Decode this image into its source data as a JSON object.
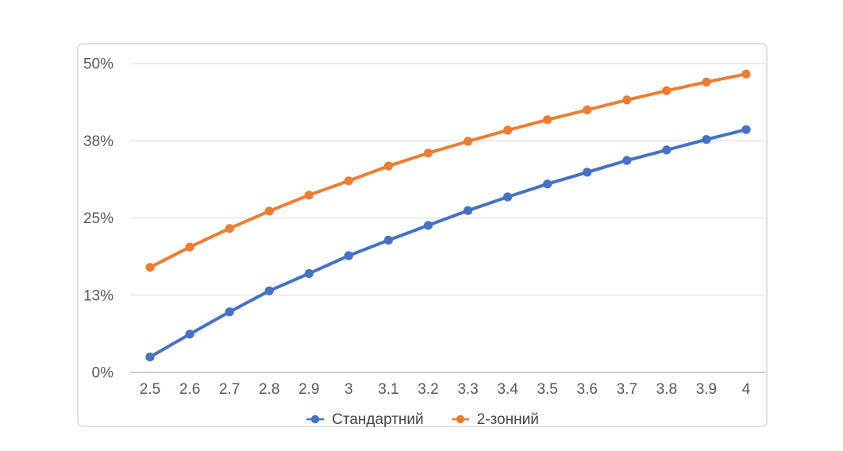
{
  "chart_data": {
    "type": "line",
    "title": "",
    "xlabel": "",
    "ylabel": "",
    "grid": "horizontal",
    "legend_position": "bottom",
    "x_categories": [
      "2.5",
      "2.6",
      "2.7",
      "2.8",
      "2.9",
      "3",
      "3.1",
      "3.2",
      "3.3",
      "3.4",
      "3.5",
      "3.6",
      "3.7",
      "3.8",
      "3.9",
      "4"
    ],
    "y_axis": {
      "min": 0,
      "max": 50,
      "unit": "%",
      "ticks": [
        {
          "value": 0,
          "label": "0%"
        },
        {
          "value": 12.5,
          "label": "13%"
        },
        {
          "value": 25,
          "label": "25%"
        },
        {
          "value": 37.5,
          "label": "38%"
        },
        {
          "value": 50,
          "label": "50%"
        }
      ]
    },
    "series": [
      {
        "name": "Стандартний",
        "color": "#4472C4",
        "marker": "circle",
        "values": [
          2.5,
          6.2,
          9.8,
          13.2,
          16.0,
          18.9,
          21.4,
          23.8,
          26.2,
          28.4,
          30.5,
          32.4,
          34.3,
          36.0,
          37.7,
          39.3
        ]
      },
      {
        "name": "2-зонний",
        "color": "#ED7D31",
        "marker": "circle",
        "values": [
          17.0,
          20.3,
          23.3,
          26.1,
          28.7,
          31.0,
          33.4,
          35.5,
          37.4,
          39.2,
          40.9,
          42.5,
          44.1,
          45.6,
          47.0,
          48.3
        ]
      }
    ]
  },
  "style": {
    "gridline_color": "#d9d9d9",
    "axis_line_color": "#bfbfbf",
    "tick_label_color": "#595959",
    "legend_text_color": "#444444",
    "frame_border_color": "#e2e2e2",
    "background": "#ffffff"
  }
}
